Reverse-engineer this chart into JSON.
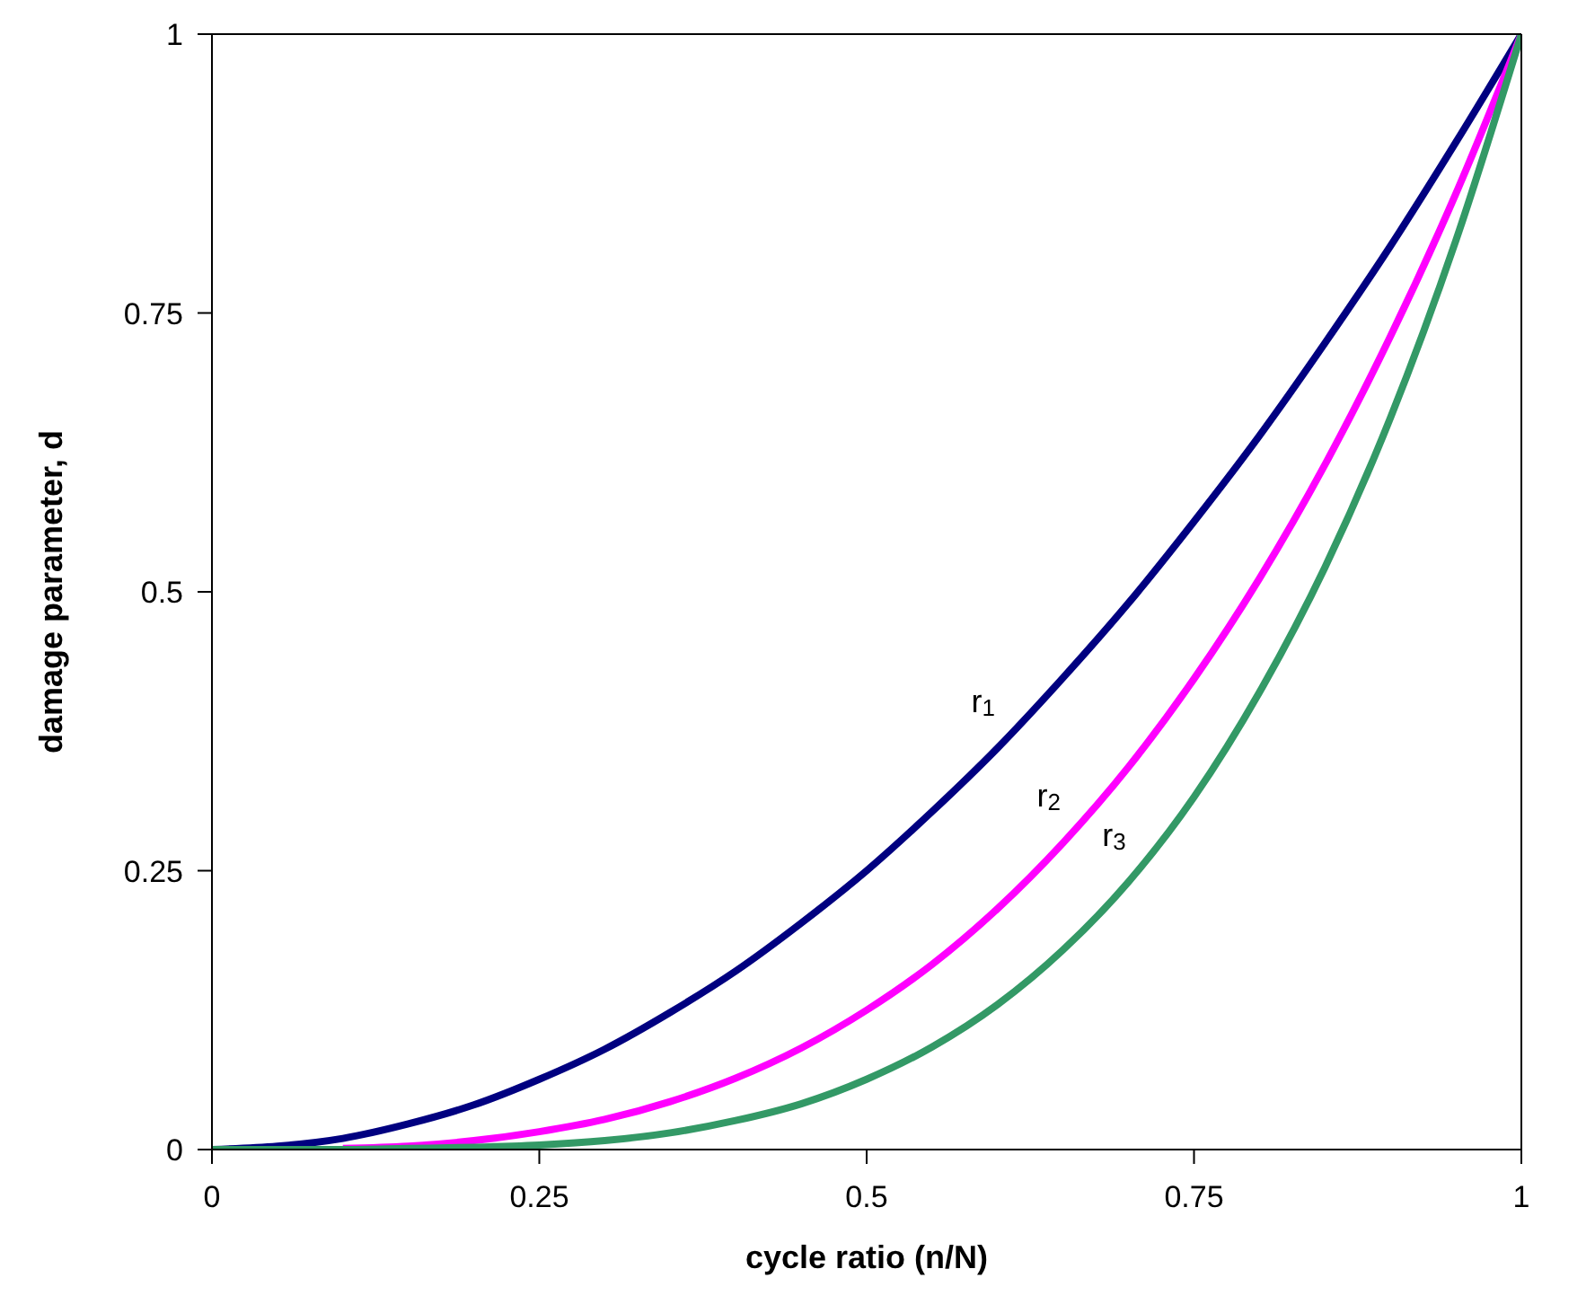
{
  "chart_data": {
    "type": "line",
    "xlabel": "cycle ratio (n/N)",
    "ylabel": "damage parameter, d",
    "x": [
      0,
      0.05,
      0.1,
      0.15,
      0.2,
      0.25,
      0.3,
      0.35,
      0.4,
      0.45,
      0.5,
      0.55,
      0.6,
      0.65,
      0.7,
      0.75,
      0.8,
      0.85,
      0.9,
      0.95,
      1
    ],
    "series": [
      {
        "name": "r$_{1}$",
        "color": "#000080",
        "values": [
          0,
          0.003,
          0.01,
          0.023,
          0.04,
          0.063,
          0.09,
          0.123,
          0.16,
          0.203,
          0.25,
          0.303,
          0.36,
          0.423,
          0.49,
          0.563,
          0.64,
          0.723,
          0.81,
          0.903,
          1
        ]
      },
      {
        "name": "r$_{2}$",
        "color": "#ff00ff",
        "values": [
          null,
          null,
          0.001,
          0.003,
          0.008,
          0.016,
          0.027,
          0.043,
          0.064,
          0.091,
          0.125,
          0.166,
          0.216,
          0.275,
          0.343,
          0.422,
          0.512,
          0.614,
          0.729,
          0.857,
          1
        ]
      },
      {
        "name": "r$_{3}$",
        "color": "#339966",
        "values": [
          0,
          0,
          0,
          0.001,
          0.002,
          0.004,
          0.008,
          0.015,
          0.026,
          0.041,
          0.063,
          0.092,
          0.13,
          0.179,
          0.24,
          0.316,
          0.41,
          0.522,
          0.656,
          0.815,
          1
        ]
      }
    ],
    "xlim": [
      0,
      1
    ],
    "ylim": [
      0,
      1
    ],
    "xticks": [
      0,
      0.25,
      0.5,
      0.75,
      1
    ],
    "yticks": [
      0,
      0.25,
      0.5,
      0.75,
      1
    ],
    "grid": false,
    "legend": false,
    "marker": "none",
    "line_style": "solid"
  }
}
